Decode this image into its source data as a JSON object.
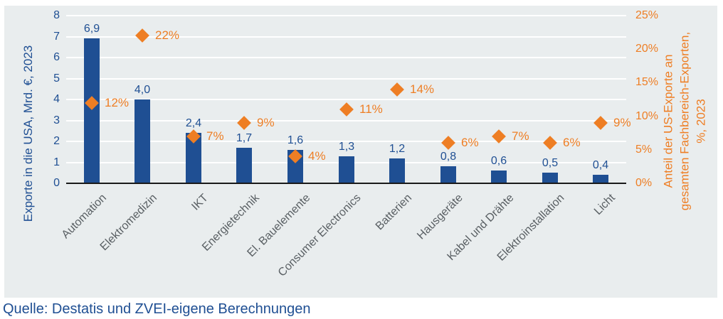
{
  "chart_data": {
    "type": "bar",
    "subtype": "combo-bar-and-diamond-scatter-dual-axis",
    "title": "",
    "categories": [
      "Automation",
      "Elektromedizin",
      "IKT",
      "Energietechnik",
      "El. Bauelemente",
      "Consumer Electronics",
      "Batterien",
      "Hausgeräte",
      "Kabel und Drähte",
      "Elektroinstallation",
      "Licht"
    ],
    "series": [
      {
        "name": "Exporte in die USA, Mrd. €, 2023",
        "type": "bar",
        "axis": "left",
        "color": "#1f4f93",
        "values": [
          6.9,
          4.0,
          2.4,
          1.7,
          1.6,
          1.3,
          1.2,
          0.8,
          0.6,
          0.5,
          0.4
        ],
        "labels": [
          "6,9",
          "4,0",
          "2,4",
          "1,7",
          "1,6",
          "1,3",
          "1,2",
          "0,8",
          "0,6",
          "0,5",
          "0,4"
        ]
      },
      {
        "name": "Anteil der US-Exporte an gesamten Fachbereich-Exporten, %, 2023",
        "type": "scatter",
        "marker": "diamond",
        "axis": "right",
        "color": "#ee7e24",
        "values": [
          12,
          22,
          7,
          9,
          4,
          11,
          14,
          6,
          7,
          6,
          9
        ],
        "labels": [
          "12%",
          "22%",
          "7%",
          "9%",
          "4%",
          "11%",
          "14%",
          "6%",
          "7%",
          "6%",
          "9%"
        ]
      }
    ],
    "left_axis": {
      "title": "Exporte in die USA, Mrd. €, 2023",
      "min": 0,
      "max": 8,
      "ticks": [
        "8",
        "7",
        "6",
        "5",
        "4",
        "3",
        "2",
        "1",
        "0"
      ]
    },
    "right_axis": {
      "title": "Anteil der US-Exporte an gesamten Fachbereich-Exporten, %, 2023",
      "title_lines": [
        "Anteil der US-Exporte an",
        "gesamten Fachbereich-Exporten,",
        "%, 2023"
      ],
      "min": 0,
      "max": 25,
      "ticks": [
        "25%",
        "20%",
        "15%",
        "10%",
        "5%",
        "0%"
      ]
    },
    "grid": "horizontal-white-lines-every-1-unit",
    "legend": "none",
    "source": "Quelle: Destatis und ZVEI-eigene Berechnungen"
  },
  "colors": {
    "bar_blue": "#1f4f93",
    "text_blue": "#1f4f93",
    "orange": "#ee7e24",
    "category_gray": "#595f63",
    "panel_background": "#e9edee",
    "gridline_white": "#ffffff",
    "axis_line_black": "#1a1a1a"
  }
}
